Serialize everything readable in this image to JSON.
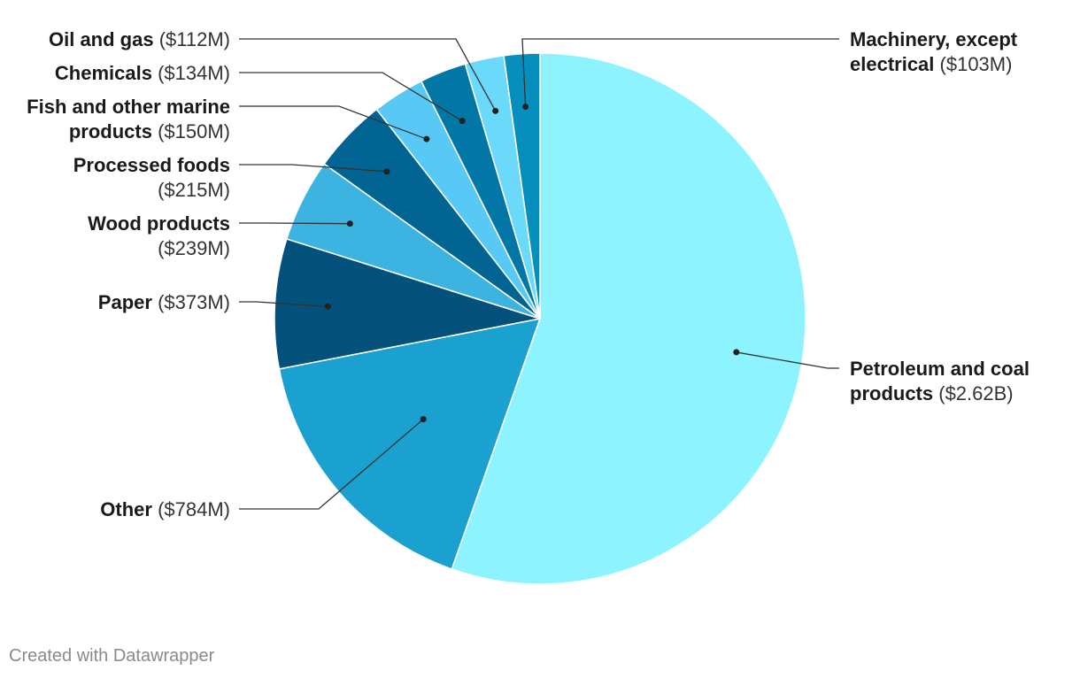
{
  "chart_data": {
    "type": "pie",
    "slices": [
      {
        "label": "Petroleum and coal products",
        "value_text": "($2.62B)",
        "value": 2620,
        "color": "#8cf3ff"
      },
      {
        "label": "Other",
        "value_text": "($784M)",
        "value": 784,
        "color": "#1ba1cf"
      },
      {
        "label": "Paper",
        "value_text": "($373M)",
        "value": 373,
        "color": "#04527c"
      },
      {
        "label": "Wood products",
        "value_text": "($239M)",
        "value": 239,
        "color": "#3cb3e1"
      },
      {
        "label": "Processed foods",
        "value_text": "($215M)",
        "value": 215,
        "color": "#026492"
      },
      {
        "label": "Fish and other marine products",
        "value_text": "($150M)",
        "value": 150,
        "color": "#58c8f4"
      },
      {
        "label": "Chemicals",
        "value_text": "($134M)",
        "value": 134,
        "color": "#0277a6"
      },
      {
        "label": "Oil and gas",
        "value_text": "($112M)",
        "value": 112,
        "color": "#6ad9fa"
      },
      {
        "label": "Machinery, except electrical",
        "value_text": "($103M)",
        "value": 103,
        "color": "#068fbd"
      }
    ]
  },
  "labels": [
    {
      "lines": [
        [
          "Petroleum and coal",
          ""
        ],
        [
          "products",
          "($2.62B)"
        ]
      ]
    },
    {
      "lines": [
        [
          "Other",
          "($784M)"
        ]
      ]
    },
    {
      "lines": [
        [
          "Paper",
          "($373M)"
        ]
      ]
    },
    {
      "lines": [
        [
          "Wood products",
          ""
        ],
        [
          "",
          "($239M)"
        ]
      ]
    },
    {
      "lines": [
        [
          "Processed foods",
          ""
        ],
        [
          "",
          "($215M)"
        ]
      ]
    },
    {
      "lines": [
        [
          "Fish and other marine",
          ""
        ],
        [
          "products",
          "($150M)"
        ]
      ]
    },
    {
      "lines": [
        [
          "Chemicals",
          "($134M)"
        ]
      ]
    },
    {
      "lines": [
        [
          "Oil and gas",
          "($112M)"
        ]
      ]
    },
    {
      "lines": [
        [
          "Machinery, except",
          ""
        ],
        [
          "electrical",
          "($103M)"
        ]
      ]
    }
  ],
  "footer": {
    "credit": "Created with Datawrapper"
  }
}
